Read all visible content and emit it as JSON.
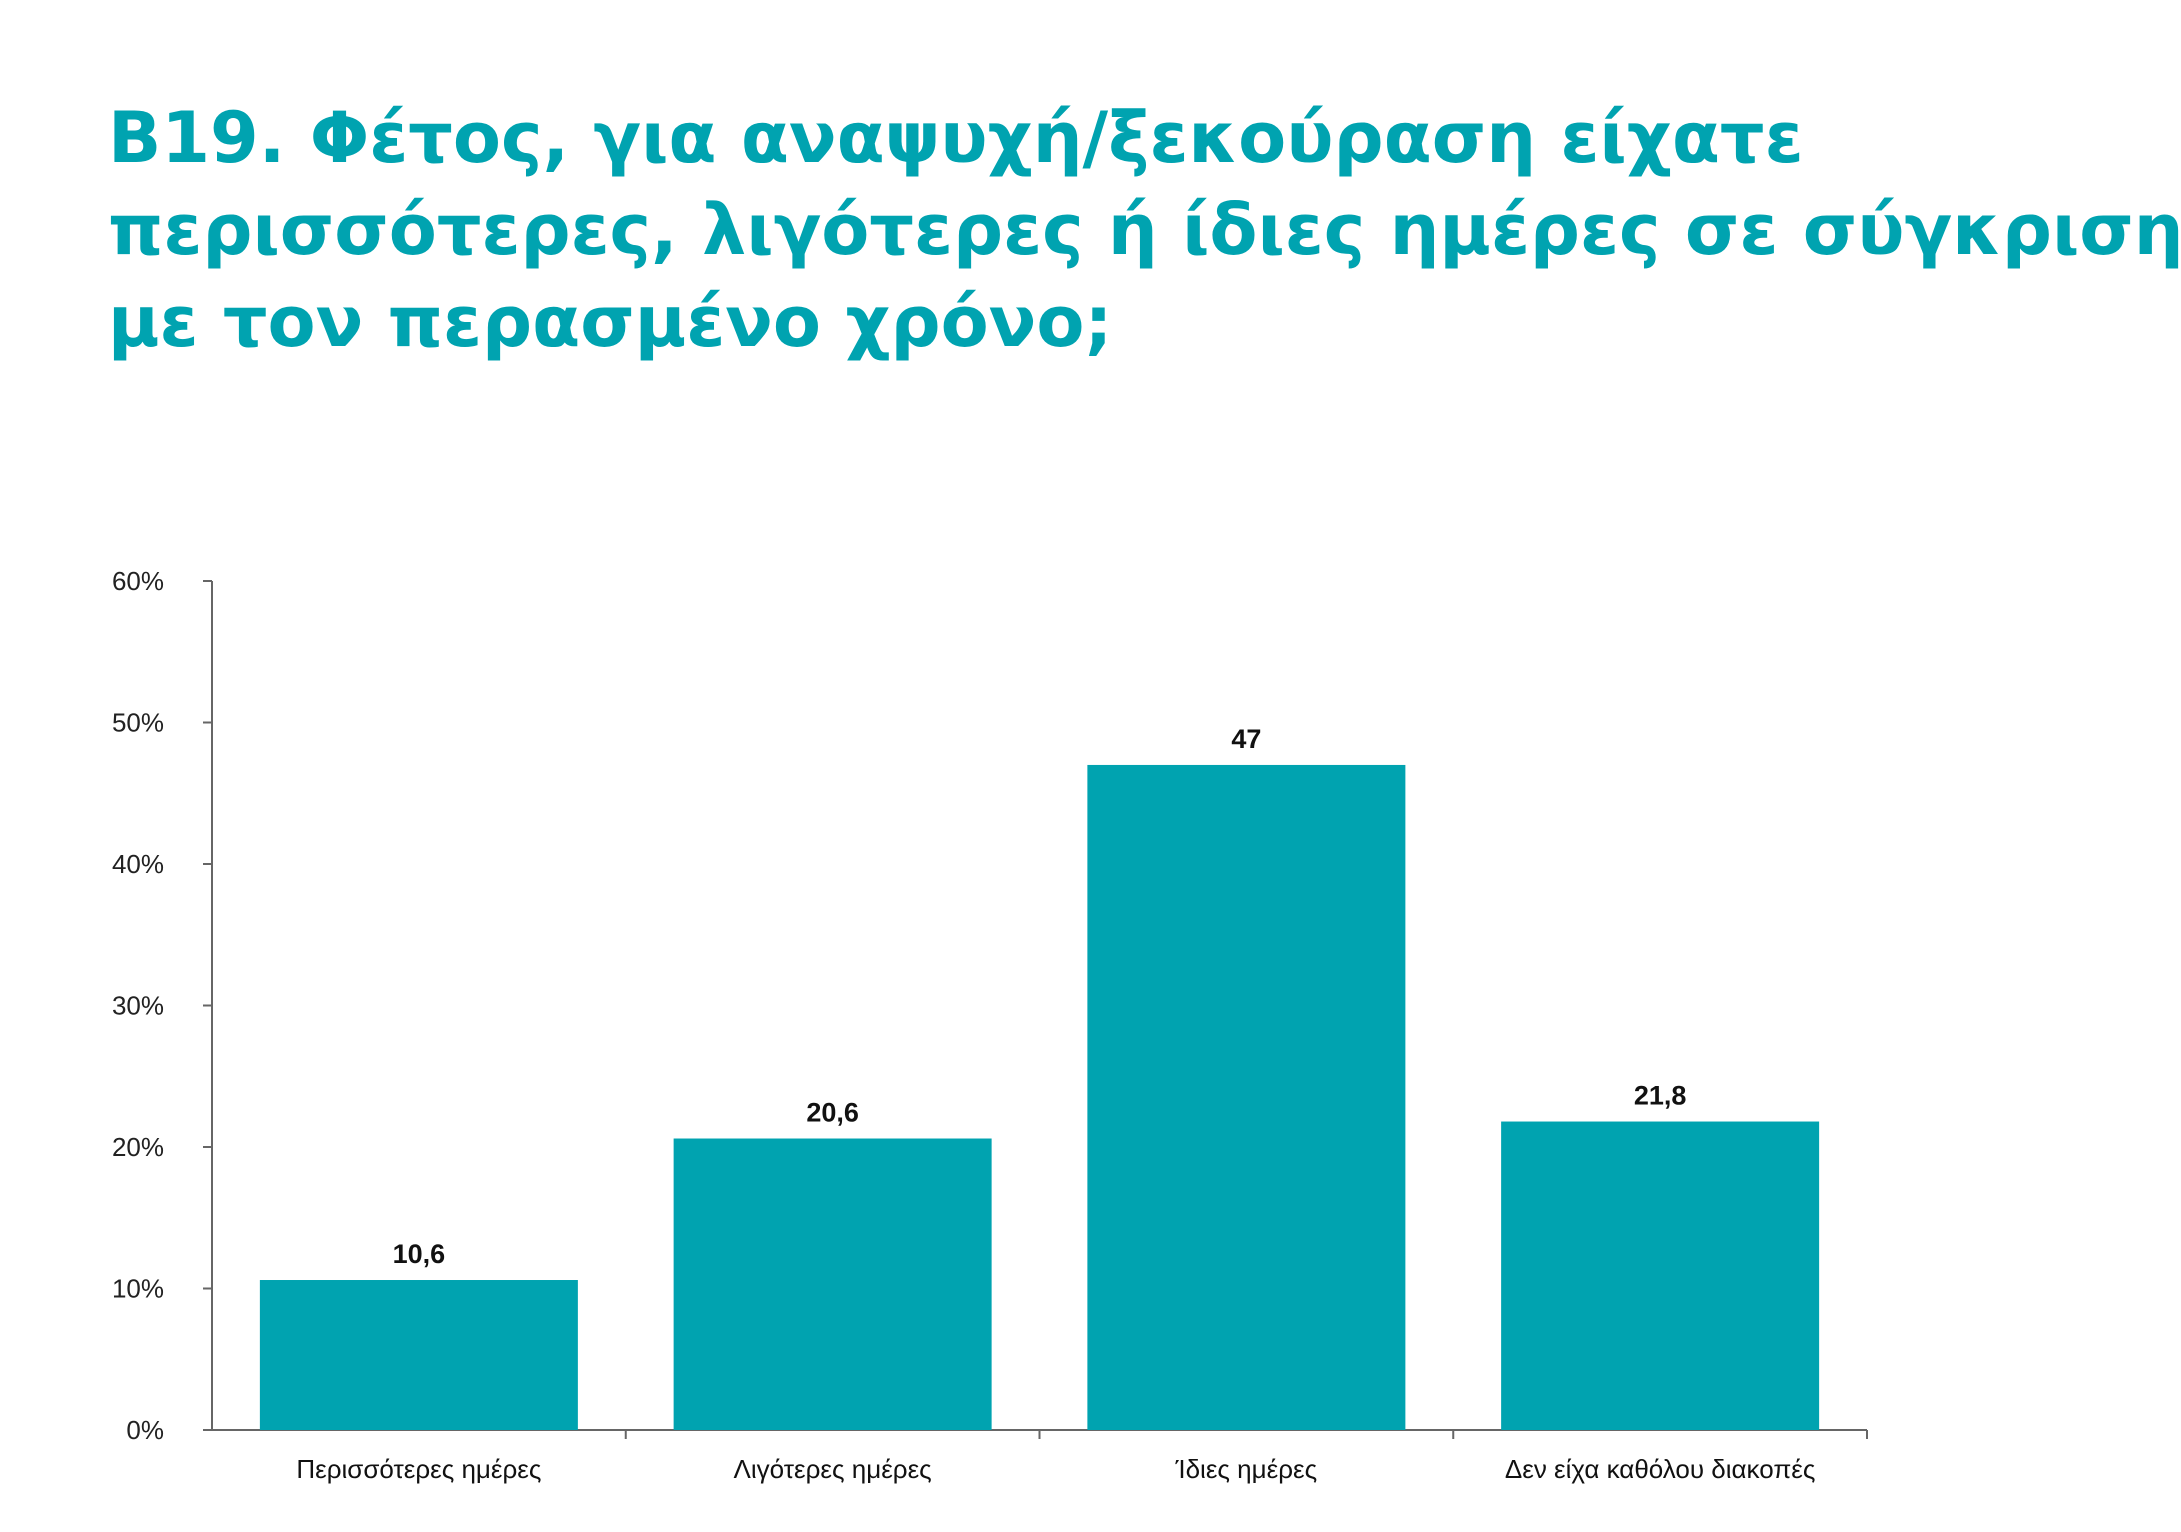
{
  "title_lines": [
    "B19. Φέτος, για αναψυχή/ξεκούραση είχατε",
    "περισσότερες, λιγότερες ή ίδιες ημέρες σε σύγκριση",
    "με τον περασμένο χρόνο;"
  ],
  "colors": {
    "title": "#00a3b0",
    "bar": "#00a3b0",
    "axis": "#666666"
  },
  "chart_data": {
    "type": "bar",
    "title": "B19. Φέτος, για αναψυχή/ξεκούραση είχατε περισσότερες, λιγότερες ή ίδιες ημέρες σε σύγκριση με τον περασμένο χρόνο;",
    "categories": [
      "Περισσότερες ημέρες",
      "Λιγότερες ημέρες",
      "Ίδιες ημέρες",
      "Δεν είχα καθόλου διακοπές"
    ],
    "values": [
      10.6,
      20.6,
      47,
      21.8
    ],
    "data_labels": [
      "10,6",
      "20,6",
      "47",
      "21,8"
    ],
    "ylim": [
      0,
      60
    ],
    "y_ticks": [
      0,
      10,
      20,
      30,
      40,
      50,
      60
    ],
    "y_tick_labels": [
      "0%",
      "10%",
      "20%",
      "30%",
      "40%",
      "50%",
      "60%"
    ],
    "xlabel": "",
    "ylabel": "",
    "grid": false,
    "legend": "none"
  }
}
